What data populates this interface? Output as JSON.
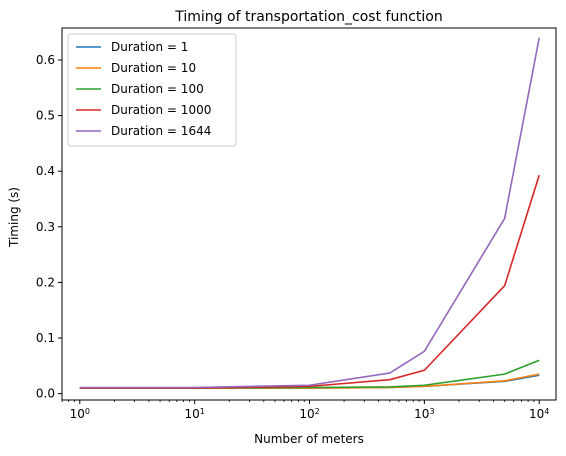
{
  "chart_data": {
    "type": "line",
    "title": "Timing of transportation_cost function",
    "xlabel": "Number of meters",
    "ylabel": "Timing (s)",
    "xscale": "log",
    "xlim": [
      0.7,
      14000
    ],
    "ylim": [
      -0.0115,
      0.6575
    ],
    "grid": false,
    "legend_position": "top-left",
    "x": [
      1,
      10,
      100,
      500,
      1000,
      5000,
      10000
    ],
    "x_ticks": [
      {
        "value": 1,
        "base": "10",
        "exp": "0"
      },
      {
        "value": 10,
        "base": "10",
        "exp": "1"
      },
      {
        "value": 100,
        "base": "10",
        "exp": "2"
      },
      {
        "value": 1000,
        "base": "10",
        "exp": "3"
      },
      {
        "value": 10000,
        "base": "10",
        "exp": "4"
      }
    ],
    "y_ticks": [
      {
        "value": 0.0,
        "label": "0.0"
      },
      {
        "value": 0.1,
        "label": "0.1"
      },
      {
        "value": 0.2,
        "label": "0.2"
      },
      {
        "value": 0.3,
        "label": "0.3"
      },
      {
        "value": 0.4,
        "label": "0.4"
      },
      {
        "value": 0.5,
        "label": "0.5"
      },
      {
        "value": 0.6,
        "label": "0.6"
      }
    ],
    "series": [
      {
        "name": "Duration = 1",
        "color": "#1f77b4",
        "values": [
          0.01,
          0.01,
          0.01,
          0.011,
          0.013,
          0.022,
          0.033
        ]
      },
      {
        "name": "Duration = 10",
        "color": "#ff7f0e",
        "values": [
          0.01,
          0.01,
          0.01,
          0.011,
          0.013,
          0.023,
          0.035
        ]
      },
      {
        "name": "Duration = 100",
        "color": "#2ca02c",
        "values": [
          0.01,
          0.01,
          0.011,
          0.012,
          0.015,
          0.035,
          0.06
        ]
      },
      {
        "name": "Duration = 1000",
        "color": "#d62728",
        "values": [
          0.01,
          0.01,
          0.013,
          0.025,
          0.042,
          0.194,
          0.393
        ]
      },
      {
        "name": "Duration = 1644",
        "color": "#9467bd",
        "values": [
          0.011,
          0.011,
          0.015,
          0.037,
          0.076,
          0.315,
          0.64
        ]
      }
    ]
  }
}
